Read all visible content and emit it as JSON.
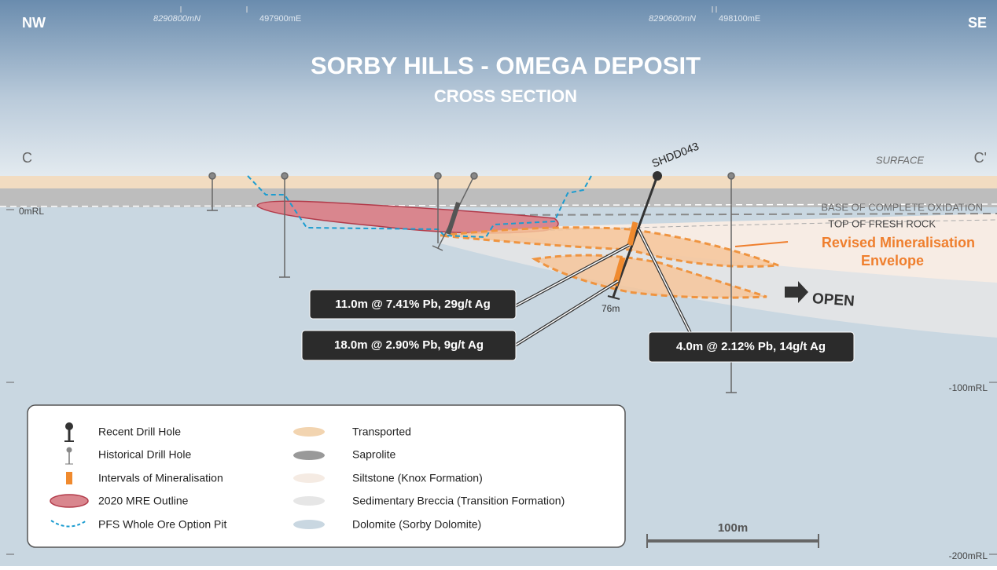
{
  "header": {
    "title": "SORBY HILLS -  OMEGA DEPOSIT",
    "subtitle": "CROSS SECTION"
  },
  "orientation": {
    "left": "NW",
    "right": "SE"
  },
  "section": {
    "left": "C",
    "right": "C'"
  },
  "grid_labels": [
    "8290800mN",
    "497900mE",
    "8290600mN",
    "498100mE"
  ],
  "levels": [
    "0mRL",
    "-100mRL",
    "-200mRL"
  ],
  "annotations": {
    "surface": "SURFACE",
    "base_oxidation": "BASE OF COMPLETE OXIDATION",
    "top_fresh_rock": "TOP OF FRESH ROCK",
    "envelope": [
      "Revised Mineralisation",
      "Envelope"
    ],
    "open": "OPEN",
    "hole": "SHDD043",
    "depth": "76m"
  },
  "callouts": [
    "11.0m @ 7.41% Pb, 29g/t Ag",
    "18.0m @ 2.90% Pb, 9g/t Ag",
    "4.0m @ 2.12% Pb, 14g/t Ag"
  ],
  "legend": [
    "Recent Drill Hole",
    "Historical Drill Hole",
    "Intervals of Mineralisation",
    "2020 MRE Outline",
    "PFS Whole Ore Option Pit",
    "Transported",
    "Saprolite",
    "Siltstone (Knox Formation)",
    "Sedimentary Breccia (Transition Formation)",
    "Dolomite (Sorby Dolomite)"
  ],
  "scale": "100m"
}
